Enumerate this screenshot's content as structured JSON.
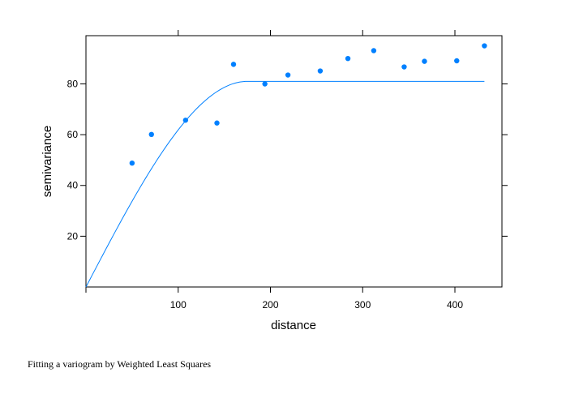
{
  "caption": "Fitting a variogram by Weighted Least Squares",
  "chart_data": {
    "type": "scatter",
    "xlabel": "distance",
    "ylabel": "semivariance",
    "xlim": [
      0,
      451
    ],
    "ylim": [
      0,
      99
    ],
    "xticks": [
      100,
      200,
      300,
      400
    ],
    "yticks": [
      20,
      40,
      60,
      80
    ],
    "grid": false,
    "point_color": "#0080ff",
    "line_color": "#0080ff",
    "points": {
      "x": [
        50,
        71,
        108,
        142,
        160,
        194,
        219,
        254,
        284,
        312,
        345,
        367,
        402,
        432
      ],
      "y": [
        48.8,
        60.1,
        65.7,
        64.6,
        87.7,
        80.0,
        83.5,
        85.1,
        90.0,
        93.1,
        86.7,
        88.9,
        89.1,
        95.0
      ]
    },
    "fitted_model": {
      "type": "spherical",
      "nugget": 0,
      "sill": 81,
      "range": 175,
      "x_end": 432
    }
  }
}
